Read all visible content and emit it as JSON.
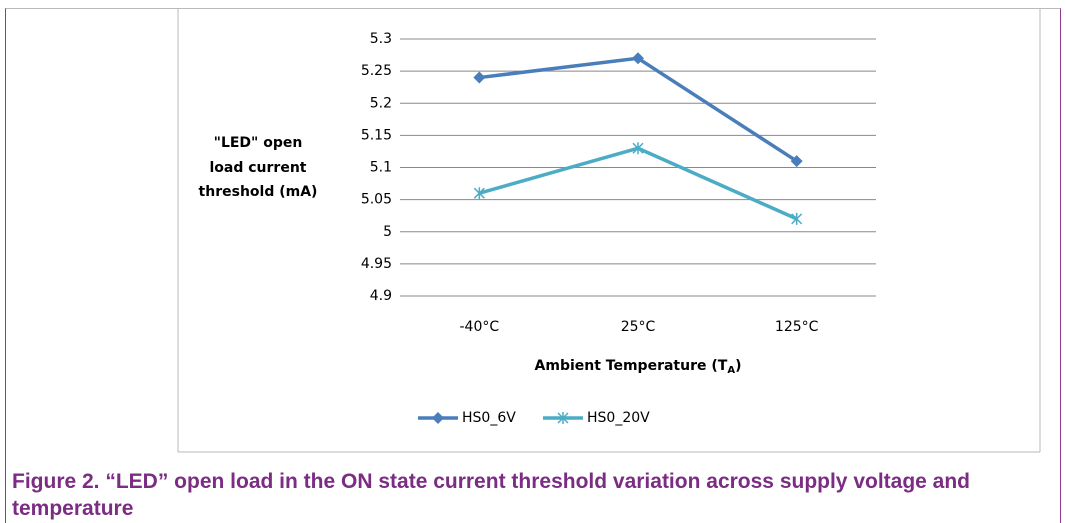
{
  "chart_data": {
    "type": "line",
    "ylabel": [
      "\"LED\" open",
      "load current",
      "threshold (mA)"
    ],
    "xlabel": [
      "Ambient Temperature (T",
      "A",
      ")"
    ],
    "categories": [
      "-40°C",
      "25°C",
      "125°C"
    ],
    "series": [
      {
        "name": "HS0_6V",
        "color": "#4a7ebb",
        "marker": "diamond",
        "values": [
          5.24,
          5.27,
          5.11
        ]
      },
      {
        "name": "HS0_20V",
        "color": "#4bacc6",
        "marker": "star",
        "values": [
          5.06,
          5.13,
          5.02
        ]
      }
    ],
    "ylim": [
      4.9,
      5.3
    ],
    "yticks": [
      4.9,
      4.95,
      5,
      5.05,
      5.1,
      5.15,
      5.2,
      5.25,
      5.3
    ],
    "grid": true,
    "legend": "bottom"
  },
  "caption": "Figure 2. “LED” open load in the ON state current threshold variation across supply voltage and temperature"
}
